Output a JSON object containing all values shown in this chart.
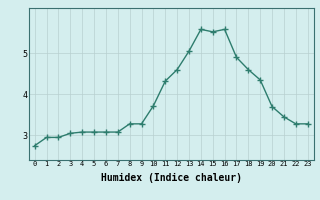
{
  "x": [
    0,
    1,
    2,
    3,
    4,
    5,
    6,
    7,
    8,
    9,
    10,
    11,
    12,
    13,
    14,
    15,
    16,
    17,
    18,
    19,
    20,
    21,
    22,
    23
  ],
  "y": [
    2.75,
    2.95,
    2.95,
    3.05,
    3.08,
    3.08,
    3.08,
    3.08,
    3.28,
    3.28,
    3.72,
    4.32,
    4.6,
    5.05,
    5.58,
    5.52,
    5.58,
    4.9,
    4.6,
    4.35,
    3.7,
    3.45,
    3.28,
    3.28
  ],
  "line_color": "#2e7d6e",
  "marker": "+",
  "markersize": 4,
  "linewidth": 1.0,
  "bg_color": "#d4eeee",
  "grid_color": "#b8d0d0",
  "xlabel": "Humidex (Indice chaleur)",
  "xlabel_fontsize": 7,
  "yticks": [
    3,
    4,
    5
  ],
  "xtick_fontsize": 5,
  "ytick_fontsize": 6,
  "xlim": [
    -0.5,
    23.5
  ],
  "ylim": [
    2.4,
    6.1
  ]
}
